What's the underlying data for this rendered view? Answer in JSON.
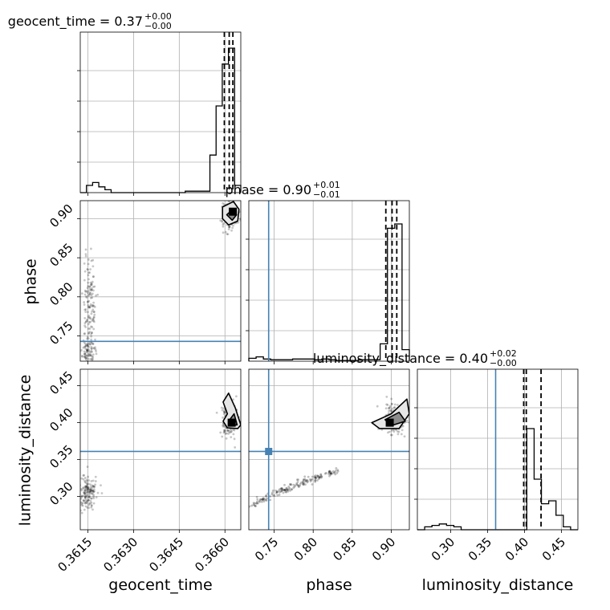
{
  "chart_data": {
    "type": "corner",
    "grid": true,
    "truth_color": "#4682b4",
    "truths": {
      "phase": 0.743,
      "luminosity_distance": 0.361
    },
    "params": [
      {
        "name": "geocent_time",
        "label": "geocent_time",
        "title": {
          "main": "geocent_time = 0.37",
          "plus": "+0.00",
          "minus": "−0.00"
        },
        "range": [
          0.36125,
          0.36652
        ],
        "ticks": [
          0.3615,
          0.363,
          0.3645,
          0.366
        ],
        "tick_labels": [
          "0.3615",
          "0.3630",
          "0.3645",
          "0.3660"
        ],
        "quantiles": [
          0.36598,
          0.36614,
          0.36626
        ],
        "hist": [
          0.0,
          0.05,
          0.07,
          0.04,
          0.02,
          0.0,
          0.0,
          0.0,
          0.0,
          0.0,
          0.0,
          0.0,
          0.0,
          0.0,
          0.0,
          0.0,
          0.0,
          0.01,
          0.01,
          0.01,
          0.01,
          0.26,
          0.6,
          0.89,
          1.0,
          0.05
        ]
      },
      {
        "name": "phase",
        "label": "phase",
        "title": {
          "main": "phase = 0.90",
          "plus": "+0.01",
          "minus": "−0.01"
        },
        "range": [
          0.7176,
          0.9231
        ],
        "ticks": [
          0.75,
          0.8,
          0.85,
          0.9
        ],
        "tick_labels": [
          "0.75",
          "0.80",
          "0.85",
          "0.90"
        ],
        "quantiles": [
          0.893,
          0.901,
          0.907
        ],
        "hist": [
          0.02,
          0.03,
          0.015,
          0.01,
          0.01,
          0.01,
          0.015,
          0.015,
          0.015,
          0.01,
          0.015,
          0.01,
          0.005,
          0.005,
          0.005,
          0.01,
          0.01,
          0.01,
          0.12,
          0.92,
          0.95,
          0.08
        ]
      },
      {
        "name": "luminosity_distance",
        "label": "luminosity_distance",
        "title": {
          "main": "luminosity_distance = 0.40",
          "plus": "+0.02",
          "minus": "−0.00"
        },
        "range": [
          0.255,
          0.4724
        ],
        "ticks": [
          0.3,
          0.35,
          0.4,
          0.45
        ],
        "tick_labels": [
          "0.30",
          "0.35",
          "0.40",
          "0.45"
        ],
        "quantiles": [
          0.399,
          0.4025,
          0.4225
        ],
        "hist": [
          0.0,
          0.02,
          0.03,
          0.04,
          0.03,
          0.02,
          0.0,
          0.0,
          0.0,
          0.0,
          0.0,
          0.0,
          0.0,
          0.0,
          0.0,
          0.7,
          0.35,
          0.18,
          0.2,
          0.1,
          0.02,
          0.0
        ]
      }
    ],
    "scatter_clusters": [
      {
        "x": "geocent_time",
        "y": "phase",
        "points": [
          {
            "cx": 0.36617,
            "cy": 0.905,
            "sx": 0.00012,
            "sy": 0.008,
            "n": 220
          },
          {
            "cx": 0.36155,
            "cy": 0.79,
            "sx": 0.0001,
            "sy": 0.03,
            "n": 130
          },
          {
            "cx": 0.3615,
            "cy": 0.73,
            "sx": 0.00012,
            "sy": 0.01,
            "n": 90
          }
        ]
      },
      {
        "x": "geocent_time",
        "y": "luminosity_distance",
        "points": [
          {
            "cx": 0.36615,
            "cy": 0.405,
            "sx": 0.00012,
            "sy": 0.012,
            "n": 160
          },
          {
            "cx": 0.36148,
            "cy": 0.305,
            "sx": 0.00015,
            "sy": 0.012,
            "n": 150
          }
        ]
      },
      {
        "x": "phase",
        "y": "luminosity_distance",
        "points": [
          {
            "cx": 0.905,
            "cy": 0.405,
            "sx": 0.008,
            "sy": 0.012,
            "n": 160
          }
        ]
      }
    ],
    "line_band": {
      "x": "phase",
      "y": "luminosity_distance",
      "x0": 0.72,
      "y0": 0.285,
      "x1": 0.83,
      "y1": 0.335,
      "n": 170
    },
    "contours": [
      {
        "x": "geocent_time",
        "y": "phase",
        "outer": [
          [
            0.36592,
            0.915
          ],
          [
            0.36628,
            0.922
          ],
          [
            0.36646,
            0.912
          ],
          [
            0.36642,
            0.897
          ],
          [
            0.36612,
            0.892
          ],
          [
            0.36592,
            0.9
          ]
        ],
        "inner": [
          [
            0.36606,
            0.905
          ],
          [
            0.36628,
            0.913
          ],
          [
            0.36638,
            0.905
          ],
          [
            0.36624,
            0.898
          ]
        ],
        "peak": [
          0.36626,
          0.909
        ]
      },
      {
        "x": "geocent_time",
        "y": "luminosity_distance",
        "outer": [
          [
            0.36594,
            0.428
          ],
          [
            0.36612,
            0.44
          ],
          [
            0.36634,
            0.42
          ],
          [
            0.36652,
            0.397
          ],
          [
            0.36642,
            0.392
          ],
          [
            0.36608,
            0.393
          ],
          [
            0.36594,
            0.402
          ],
          [
            0.36608,
            0.412
          ]
        ],
        "inner": [
          [
            0.36612,
            0.402
          ],
          [
            0.3663,
            0.412
          ],
          [
            0.3664,
            0.397
          ],
          [
            0.36618,
            0.396
          ]
        ],
        "peak": [
          0.36622,
          0.4
        ]
      },
      {
        "x": "phase",
        "y": "luminosity_distance",
        "outer": [
          [
            0.875,
            0.4
          ],
          [
            0.9,
            0.412
          ],
          [
            0.92,
            0.432
          ],
          [
            0.923,
            0.412
          ],
          [
            0.91,
            0.392
          ],
          [
            0.885,
            0.392
          ]
        ],
        "inner": [
          [
            0.892,
            0.404
          ],
          [
            0.91,
            0.414
          ],
          [
            0.918,
            0.402
          ],
          [
            0.9,
            0.396
          ]
        ],
        "peak": [
          0.898,
          0.4
        ]
      }
    ]
  }
}
